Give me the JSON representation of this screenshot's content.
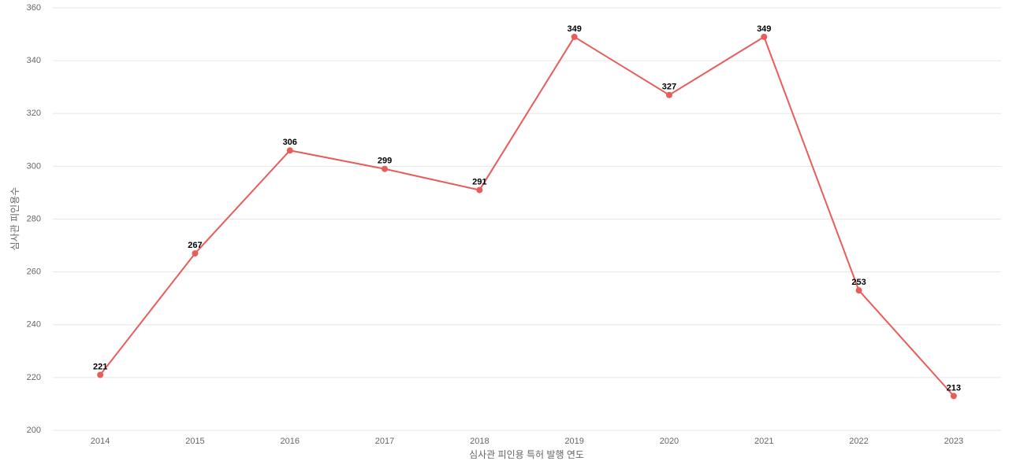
{
  "chart_data": {
    "type": "line",
    "x_label": "심사관 피인용 특허 발행 연도",
    "y_label": "심사관 피인용수",
    "categories": [
      "2014",
      "2015",
      "2016",
      "2017",
      "2018",
      "2019",
      "2020",
      "2021",
      "2022",
      "2023"
    ],
    "values": [
      221,
      267,
      306,
      299,
      291,
      349,
      327,
      349,
      253,
      213
    ],
    "color": "#e85c5c",
    "ylim": [
      200,
      360
    ],
    "yticks": [
      200,
      220,
      240,
      260,
      280,
      300,
      320,
      340,
      360
    ],
    "grid": true
  }
}
